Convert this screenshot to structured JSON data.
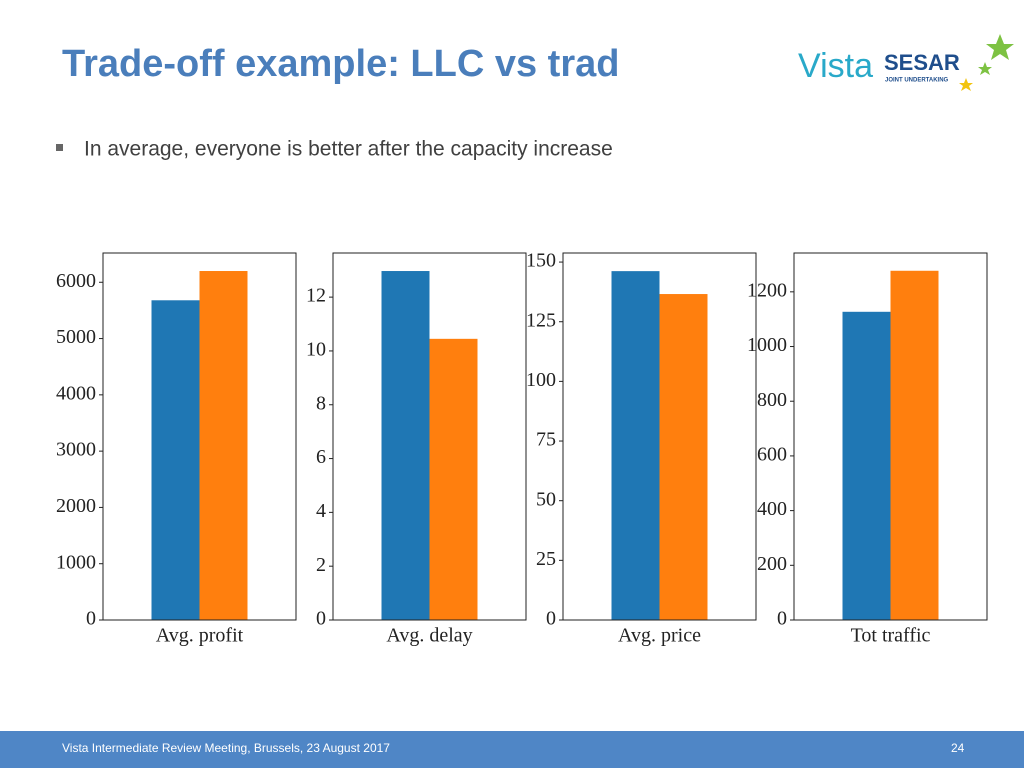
{
  "header": {
    "title": "Trade-off example: LLC vs trad"
  },
  "logo": {
    "vista": "Vista",
    "sesar": "SESAR",
    "subtitle": "JOINT UNDERTAKING"
  },
  "bullet": "In average, everyone is better after the capacity increase",
  "footer": {
    "text": "Vista Intermediate Review Meeting, Brussels, 23 August 2017",
    "page": "24"
  },
  "chart_data": [
    {
      "type": "bar",
      "categories": [
        "Avg. profit"
      ],
      "ylim": [
        0,
        6520
      ],
      "yticks": [
        0,
        1000,
        2000,
        3000,
        4000,
        5000,
        6000
      ],
      "series": [
        {
          "color": "#1f77b4",
          "values": [
            5680
          ]
        },
        {
          "color": "#ff7f0e",
          "values": [
            6200
          ]
        }
      ]
    },
    {
      "type": "bar",
      "categories": [
        "Avg. delay"
      ],
      "ylim": [
        0,
        13.64
      ],
      "yticks": [
        0,
        2,
        4,
        6,
        8,
        10,
        12
      ],
      "series": [
        {
          "color": "#1f77b4",
          "values": [
            12.97
          ]
        },
        {
          "color": "#ff7f0e",
          "values": [
            10.45
          ]
        }
      ]
    },
    {
      "type": "bar",
      "categories": [
        "Avg. price"
      ],
      "ylim": [
        0,
        153.8
      ],
      "yticks": [
        0,
        25,
        50,
        75,
        100,
        125,
        150
      ],
      "series": [
        {
          "color": "#1f77b4",
          "values": [
            146.2
          ]
        },
        {
          "color": "#ff7f0e",
          "values": [
            136.6
          ]
        }
      ]
    },
    {
      "type": "bar",
      "categories": [
        "Tot traffic"
      ],
      "ylim": [
        0,
        1342
      ],
      "yticks": [
        0,
        200,
        400,
        600,
        800,
        1000,
        1200
      ],
      "series": [
        {
          "color": "#1f77b4",
          "values": [
            1127
          ]
        },
        {
          "color": "#ff7f0e",
          "values": [
            1277
          ]
        }
      ]
    }
  ]
}
